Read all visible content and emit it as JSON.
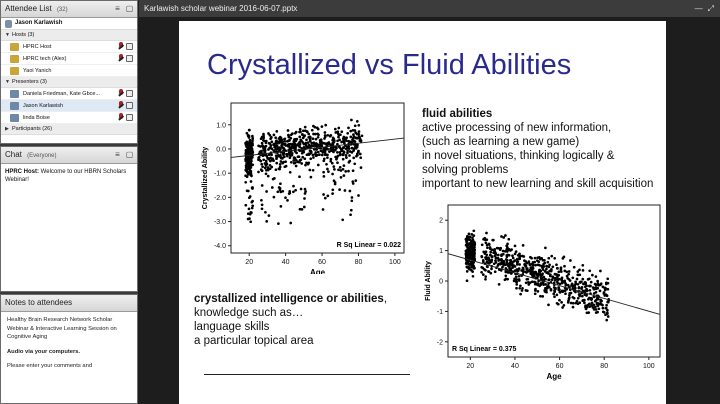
{
  "attendee_panel": {
    "title": "Attendee List",
    "count": "(32)",
    "me": "Jason Karlawish",
    "groups": [
      {
        "label": "Hosts (3)",
        "members": [
          "HPRC Host",
          "HPRC tech (Alex)",
          "Yaoi Yanich"
        ]
      },
      {
        "label": "Presenters (3)",
        "members": [
          "Daniela Friedman, Kate Gbce...",
          "Jason Karlawish",
          "linda Boise"
        ]
      },
      {
        "label": "Participants (26)",
        "members": []
      }
    ]
  },
  "chat_panel": {
    "title": "Chat",
    "scope": "(Everyone)",
    "message_sender": "HPRC Host:",
    "message_text": "Welcome to our HBRN Scholars Webinar!"
  },
  "notes_panel": {
    "title": "Notes to attendees",
    "lines": [
      "Healthy Brain Research Network Scholar Webinar & Interactive Learning Session on Cognitive Aging",
      "Audio via your computers.",
      "Please enter your comments and"
    ]
  },
  "window": {
    "title": "Karlawish scholar webinar 2016-06-07.pptx"
  },
  "slide": {
    "title": "Crystallized vs Fluid Abilities",
    "fluid_heading": "fluid abilities",
    "fluid_lines": [
      "active processing of new information,",
      "(such as learning a new game)",
      "in novel situations, thinking logically &",
      "solving problems",
      "important to new learning and skill acquisition"
    ],
    "crystal_heading": "crystallized intelligence or abilities",
    "crystal_heading_suffix": ",",
    "crystal_lines": [
      "knowledge such as…",
      "language skills",
      "a particular topical area"
    ]
  },
  "chart_data": [
    {
      "type": "scatter",
      "xlabel": "Age",
      "ylabel": "Crystallized Ability",
      "xlim": [
        10,
        105
      ],
      "ylim": [
        -4.3,
        1.9
      ],
      "xticks": [
        20,
        40,
        60,
        80,
        100
      ],
      "yticks": [
        1.0,
        0.0,
        -1.0,
        -2.0,
        -3.0,
        -4.0
      ],
      "yticklabels": [
        "1.0",
        "0.0",
        "-1.0",
        "-2.0",
        "-3.0",
        "-4.0"
      ],
      "annotation": "R Sq Linear = 0.022",
      "fit_line": {
        "x": [
          10,
          105
        ],
        "y": [
          -0.35,
          0.45
        ]
      },
      "points_description": "dense cloud of points for ages ~18-82"
    },
    {
      "type": "scatter",
      "xlabel": "Age",
      "ylabel": "Fluid Ability",
      "xlim": [
        10,
        105
      ],
      "ylim": [
        -2.5,
        2.5
      ],
      "xticks": [
        20,
        40,
        60,
        80,
        100
      ],
      "yticks": [
        2,
        1,
        0,
        -1,
        -2
      ],
      "yticklabels": [
        "2",
        "1",
        "0",
        "-1",
        "-2"
      ],
      "annotation": "R Sq Linear = 0.375",
      "fit_line": {
        "x": [
          10,
          105
        ],
        "y": [
          0.9,
          -1.1
        ]
      },
      "points_description": "dense cloud of points for ages ~18-82, downward trend"
    }
  ]
}
